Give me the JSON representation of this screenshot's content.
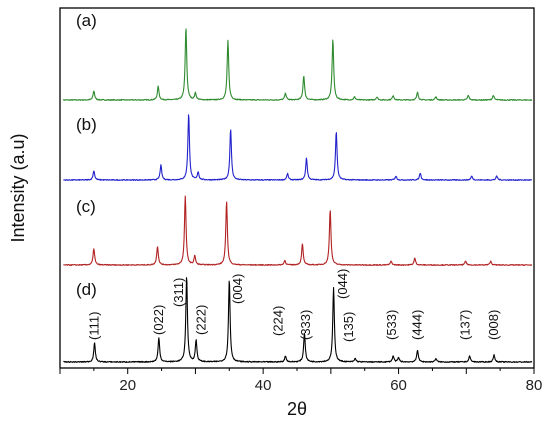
{
  "chart_data": {
    "type": "line",
    "xlabel": "2θ",
    "ylabel": "Intensity (a.u)",
    "xlim": [
      10,
      80
    ],
    "xticks": [
      20,
      40,
      60,
      80
    ],
    "grid": false,
    "series": [
      {
        "panel_label": "(a)",
        "color": "#2e8b2e",
        "peaks": [
          {
            "x": 15.0,
            "h": 0.12
          },
          {
            "x": 24.5,
            "h": 0.18
          },
          {
            "x": 28.6,
            "h": 0.95
          },
          {
            "x": 30.0,
            "h": 0.09
          },
          {
            "x": 34.8,
            "h": 0.78
          },
          {
            "x": 43.3,
            "h": 0.09
          },
          {
            "x": 46.0,
            "h": 0.32
          },
          {
            "x": 50.3,
            "h": 0.8
          },
          {
            "x": 53.5,
            "h": 0.04
          },
          {
            "x": 56.8,
            "h": 0.04
          },
          {
            "x": 59.2,
            "h": 0.06
          },
          {
            "x": 62.8,
            "h": 0.1
          },
          {
            "x": 65.5,
            "h": 0.04
          },
          {
            "x": 70.3,
            "h": 0.06
          },
          {
            "x": 74.0,
            "h": 0.06
          }
        ]
      },
      {
        "panel_label": "(b)",
        "color": "#2222cc",
        "peaks": [
          {
            "x": 15.0,
            "h": 0.12
          },
          {
            "x": 24.9,
            "h": 0.19
          },
          {
            "x": 29.0,
            "h": 0.85
          },
          {
            "x": 30.4,
            "h": 0.1
          },
          {
            "x": 35.2,
            "h": 0.65
          },
          {
            "x": 43.6,
            "h": 0.08
          },
          {
            "x": 46.4,
            "h": 0.28
          },
          {
            "x": 50.8,
            "h": 0.62
          },
          {
            "x": 59.6,
            "h": 0.05
          },
          {
            "x": 63.2,
            "h": 0.09
          },
          {
            "x": 70.8,
            "h": 0.05
          },
          {
            "x": 74.5,
            "h": 0.05
          }
        ]
      },
      {
        "panel_label": "(c)",
        "color": "#b22222",
        "peaks": [
          {
            "x": 15.0,
            "h": 0.22
          },
          {
            "x": 24.4,
            "h": 0.25
          },
          {
            "x": 28.5,
            "h": 0.92
          },
          {
            "x": 29.9,
            "h": 0.12
          },
          {
            "x": 34.6,
            "h": 0.85
          },
          {
            "x": 43.2,
            "h": 0.06
          },
          {
            "x": 45.8,
            "h": 0.28
          },
          {
            "x": 49.9,
            "h": 0.74
          },
          {
            "x": 58.9,
            "h": 0.05
          },
          {
            "x": 62.4,
            "h": 0.09
          },
          {
            "x": 69.9,
            "h": 0.05
          },
          {
            "x": 73.6,
            "h": 0.05
          }
        ]
      },
      {
        "panel_label": "(d)",
        "color": "#000000",
        "peaks": [
          {
            "x": 15.1,
            "h": 0.22
          },
          {
            "x": 24.6,
            "h": 0.28
          },
          {
            "x": 28.7,
            "h": 1.0
          },
          {
            "x": 30.1,
            "h": 0.25
          },
          {
            "x": 35.0,
            "h": 0.96
          },
          {
            "x": 43.3,
            "h": 0.07
          },
          {
            "x": 46.1,
            "h": 0.34
          },
          {
            "x": 50.4,
            "h": 0.86
          },
          {
            "x": 53.6,
            "h": 0.04
          },
          {
            "x": 59.2,
            "h": 0.07
          },
          {
            "x": 60.0,
            "h": 0.05
          },
          {
            "x": 62.8,
            "h": 0.14
          },
          {
            "x": 65.5,
            "h": 0.04
          },
          {
            "x": 70.5,
            "h": 0.07
          },
          {
            "x": 74.1,
            "h": 0.08
          }
        ]
      }
    ],
    "annotations": [
      {
        "text": "(111)",
        "x": 15.1
      },
      {
        "text": "(022)",
        "x": 24.6
      },
      {
        "text": "(311)",
        "x": 27.6
      },
      {
        "text": "(222)",
        "x": 30.9
      },
      {
        "text": "(004)",
        "x": 36.3
      },
      {
        "text": "(224)",
        "x": 42.3
      },
      {
        "text": "(333)",
        "x": 46.3
      },
      {
        "text": "(044)",
        "x": 51.8
      },
      {
        "text": "(135)",
        "x": 52.7
      },
      {
        "text": "(533)",
        "x": 59.0
      },
      {
        "text": "(444)",
        "x": 62.8
      },
      {
        "text": "(137)",
        "x": 69.9
      },
      {
        "text": "(008)",
        "x": 74.1
      }
    ]
  }
}
